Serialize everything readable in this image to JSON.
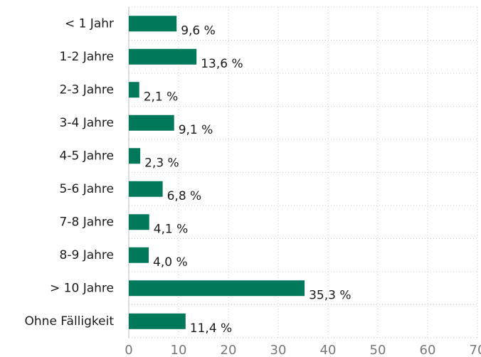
{
  "chart_data": {
    "type": "hbar",
    "categories": [
      "< 1 Jahr",
      "1-2 Jahre",
      "2-3 Jahre",
      "3-4 Jahre",
      "4-5 Jahre",
      "5-6 Jahre",
      "7-8 Jahre",
      "8-9 Jahre",
      "> 10 Jahre",
      "Ohne Fälligkeit"
    ],
    "values": [
      9.6,
      13.6,
      2.1,
      9.1,
      2.3,
      6.8,
      4.1,
      4.0,
      35.3,
      11.4
    ],
    "value_labels": [
      "9,6 %",
      "13,6 %",
      "2,1 %",
      "9,1 %",
      "2,3 %",
      "6,8 %",
      "4,1 %",
      "4,0 %",
      "35,3 %",
      "11,4 %"
    ],
    "color": "#00785a",
    "xlim": [
      0,
      70
    ],
    "xticks": [
      0,
      10,
      20,
      30,
      40,
      50,
      60,
      70
    ],
    "grid": true
  }
}
